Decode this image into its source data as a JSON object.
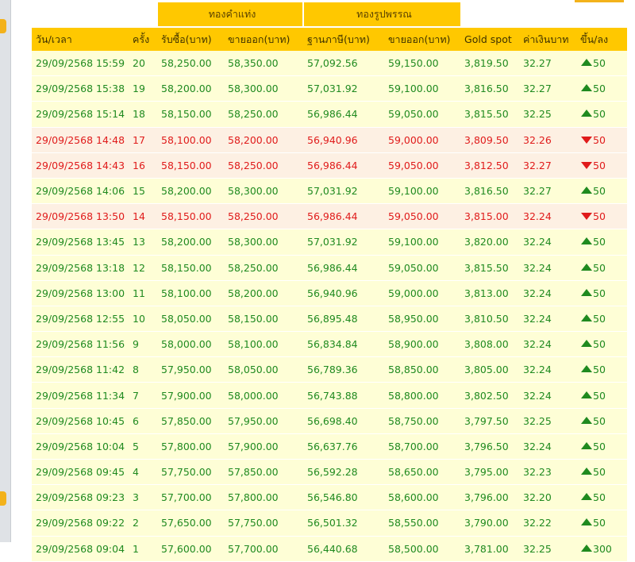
{
  "groups": {
    "bar": "ทองคำแท่ง",
    "ornament": "ทองรูปพรรณ"
  },
  "columns": [
    "วัน/เวลา",
    "ครั้ง",
    "รับซื้อ(บาท)",
    "ขายออก(บาท)",
    "ฐานภาษี(บาท)",
    "ขายออก(บาท)",
    "Gold spot",
    "ค่าเงินบาท",
    "ขึ้น/ลง"
  ],
  "colors": {
    "up": "#1f8a1f",
    "down": "#e01b1b",
    "header": "#ffc800"
  },
  "rows": [
    {
      "time": "29/09/2568 15:59",
      "round": "20",
      "bar_buy": "58,250.00",
      "bar_sell": "58,350.00",
      "tax_base": "57,092.56",
      "orn_sell": "59,150.00",
      "spot": "3,819.50",
      "thb": "32.27",
      "dir": "up",
      "change": "50"
    },
    {
      "time": "29/09/2568 15:38",
      "round": "19",
      "bar_buy": "58,200.00",
      "bar_sell": "58,300.00",
      "tax_base": "57,031.92",
      "orn_sell": "59,100.00",
      "spot": "3,816.50",
      "thb": "32.27",
      "dir": "up",
      "change": "50"
    },
    {
      "time": "29/09/2568 15:14",
      "round": "18",
      "bar_buy": "58,150.00",
      "bar_sell": "58,250.00",
      "tax_base": "56,986.44",
      "orn_sell": "59,050.00",
      "spot": "3,815.50",
      "thb": "32.25",
      "dir": "up",
      "change": "50"
    },
    {
      "time": "29/09/2568 14:48",
      "round": "17",
      "bar_buy": "58,100.00",
      "bar_sell": "58,200.00",
      "tax_base": "56,940.96",
      "orn_sell": "59,000.00",
      "spot": "3,809.50",
      "thb": "32.26",
      "dir": "down",
      "change": "50"
    },
    {
      "time": "29/09/2568 14:43",
      "round": "16",
      "bar_buy": "58,150.00",
      "bar_sell": "58,250.00",
      "tax_base": "56,986.44",
      "orn_sell": "59,050.00",
      "spot": "3,812.50",
      "thb": "32.27",
      "dir": "down",
      "change": "50"
    },
    {
      "time": "29/09/2568 14:06",
      "round": "15",
      "bar_buy": "58,200.00",
      "bar_sell": "58,300.00",
      "tax_base": "57,031.92",
      "orn_sell": "59,100.00",
      "spot": "3,816.50",
      "thb": "32.27",
      "dir": "up",
      "change": "50"
    },
    {
      "time": "29/09/2568 13:50",
      "round": "14",
      "bar_buy": "58,150.00",
      "bar_sell": "58,250.00",
      "tax_base": "56,986.44",
      "orn_sell": "59,050.00",
      "spot": "3,815.00",
      "thb": "32.24",
      "dir": "down",
      "change": "50"
    },
    {
      "time": "29/09/2568 13:45",
      "round": "13",
      "bar_buy": "58,200.00",
      "bar_sell": "58,300.00",
      "tax_base": "57,031.92",
      "orn_sell": "59,100.00",
      "spot": "3,820.00",
      "thb": "32.24",
      "dir": "up",
      "change": "50"
    },
    {
      "time": "29/09/2568 13:18",
      "round": "12",
      "bar_buy": "58,150.00",
      "bar_sell": "58,250.00",
      "tax_base": "56,986.44",
      "orn_sell": "59,050.00",
      "spot": "3,815.50",
      "thb": "32.24",
      "dir": "up",
      "change": "50"
    },
    {
      "time": "29/09/2568 13:00",
      "round": "11",
      "bar_buy": "58,100.00",
      "bar_sell": "58,200.00",
      "tax_base": "56,940.96",
      "orn_sell": "59,000.00",
      "spot": "3,813.00",
      "thb": "32.24",
      "dir": "up",
      "change": "50"
    },
    {
      "time": "29/09/2568 12:55",
      "round": "10",
      "bar_buy": "58,050.00",
      "bar_sell": "58,150.00",
      "tax_base": "56,895.48",
      "orn_sell": "58,950.00",
      "spot": "3,810.50",
      "thb": "32.24",
      "dir": "up",
      "change": "50"
    },
    {
      "time": "29/09/2568 11:56",
      "round": "9",
      "bar_buy": "58,000.00",
      "bar_sell": "58,100.00",
      "tax_base": "56,834.84",
      "orn_sell": "58,900.00",
      "spot": "3,808.00",
      "thb": "32.24",
      "dir": "up",
      "change": "50"
    },
    {
      "time": "29/09/2568 11:42",
      "round": "8",
      "bar_buy": "57,950.00",
      "bar_sell": "58,050.00",
      "tax_base": "56,789.36",
      "orn_sell": "58,850.00",
      "spot": "3,805.00",
      "thb": "32.24",
      "dir": "up",
      "change": "50"
    },
    {
      "time": "29/09/2568 11:34",
      "round": "7",
      "bar_buy": "57,900.00",
      "bar_sell": "58,000.00",
      "tax_base": "56,743.88",
      "orn_sell": "58,800.00",
      "spot": "3,802.50",
      "thb": "32.24",
      "dir": "up",
      "change": "50"
    },
    {
      "time": "29/09/2568 10:45",
      "round": "6",
      "bar_buy": "57,850.00",
      "bar_sell": "57,950.00",
      "tax_base": "56,698.40",
      "orn_sell": "58,750.00",
      "spot": "3,797.50",
      "thb": "32.25",
      "dir": "up",
      "change": "50"
    },
    {
      "time": "29/09/2568 10:04",
      "round": "5",
      "bar_buy": "57,800.00",
      "bar_sell": "57,900.00",
      "tax_base": "56,637.76",
      "orn_sell": "58,700.00",
      "spot": "3,796.50",
      "thb": "32.24",
      "dir": "up",
      "change": "50"
    },
    {
      "time": "29/09/2568 09:45",
      "round": "4",
      "bar_buy": "57,750.00",
      "bar_sell": "57,850.00",
      "tax_base": "56,592.28",
      "orn_sell": "58,650.00",
      "spot": "3,795.00",
      "thb": "32.23",
      "dir": "up",
      "change": "50"
    },
    {
      "time": "29/09/2568 09:23",
      "round": "3",
      "bar_buy": "57,700.00",
      "bar_sell": "57,800.00",
      "tax_base": "56,546.80",
      "orn_sell": "58,600.00",
      "spot": "3,796.00",
      "thb": "32.20",
      "dir": "up",
      "change": "50"
    },
    {
      "time": "29/09/2568 09:22",
      "round": "2",
      "bar_buy": "57,650.00",
      "bar_sell": "57,750.00",
      "tax_base": "56,501.32",
      "orn_sell": "58,550.00",
      "spot": "3,790.00",
      "thb": "32.22",
      "dir": "up",
      "change": "50"
    },
    {
      "time": "29/09/2568 09:04",
      "round": "1",
      "bar_buy": "57,600.00",
      "bar_sell": "57,700.00",
      "tax_base": "56,440.68",
      "orn_sell": "58,500.00",
      "spot": "3,781.00",
      "thb": "32.25",
      "dir": "up",
      "change": "300"
    }
  ]
}
